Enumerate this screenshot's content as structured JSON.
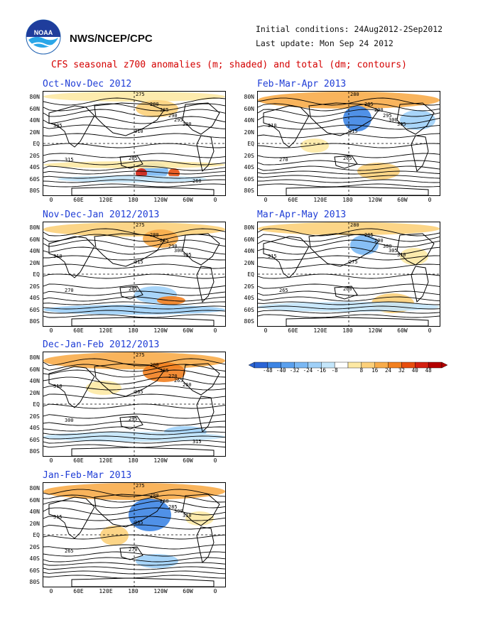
{
  "header": {
    "org": "NWS/NCEP/CPC",
    "initial_conditions": "Initial conditions: 24Aug2012-2Sep2012",
    "last_update": "Last update: Mon Sep 24 2012",
    "title": "CFS seasonal z700 anomalies (m; shaded) and total (dm; contours)"
  },
  "logo": {
    "text": "NOAA"
  },
  "axes": {
    "lat_labels": [
      "80N",
      "60N",
      "40N",
      "20N",
      "EQ",
      "20S",
      "40S",
      "60S",
      "80S"
    ],
    "lon_labels": [
      "0",
      "60E",
      "120E",
      "180",
      "120W",
      "60W",
      "0"
    ]
  },
  "panels": [
    {
      "title": "Oct-Nov-Dec 2012",
      "contours": [
        "275",
        "280",
        "285",
        "290",
        "295",
        "300",
        "305",
        "310",
        "315",
        "265",
        "260"
      ]
    },
    {
      "title": "Nov-Dec-Jan 2012/2013",
      "contours": [
        "275",
        "280",
        "285",
        "290",
        "300",
        "305",
        "310",
        "315",
        "270",
        "265"
      ]
    },
    {
      "title": "Dec-Jan-Feb 2012/2013",
      "contours": [
        "275",
        "280",
        "285",
        "270",
        "265",
        "260",
        "310",
        "305",
        "300",
        "295",
        "315"
      ]
    },
    {
      "title": "Jan-Feb-Mar 2013",
      "contours": [
        "275",
        "280",
        "260",
        "285",
        "300",
        "310",
        "315",
        "305",
        "265",
        "270"
      ]
    },
    {
      "title": "Feb-Mar-Apr 2013",
      "contours": [
        "280",
        "285",
        "290",
        "295",
        "300",
        "305",
        "310",
        "315",
        "270",
        "265"
      ]
    },
    {
      "title": "Mar-Apr-May 2013",
      "contours": [
        "280",
        "285",
        "290",
        "300",
        "305",
        "310",
        "315",
        "275",
        "265",
        "260"
      ]
    }
  ],
  "colorbar": {
    "labels": [
      "-48",
      "-40",
      "-32",
      "-24",
      "-16",
      "-8",
      "8",
      "16",
      "24",
      "32",
      "40",
      "48"
    ],
    "colors": [
      "#2a64d6",
      "#3d85e4",
      "#5aa0ee",
      "#7ab8f4",
      "#9fd0f8",
      "#c4e6fb",
      "#ffffff",
      "#fde9a4",
      "#fcd07a",
      "#f8ac4a",
      "#f2801f",
      "#e84e0e",
      "#d42010",
      "#b40000"
    ]
  }
}
